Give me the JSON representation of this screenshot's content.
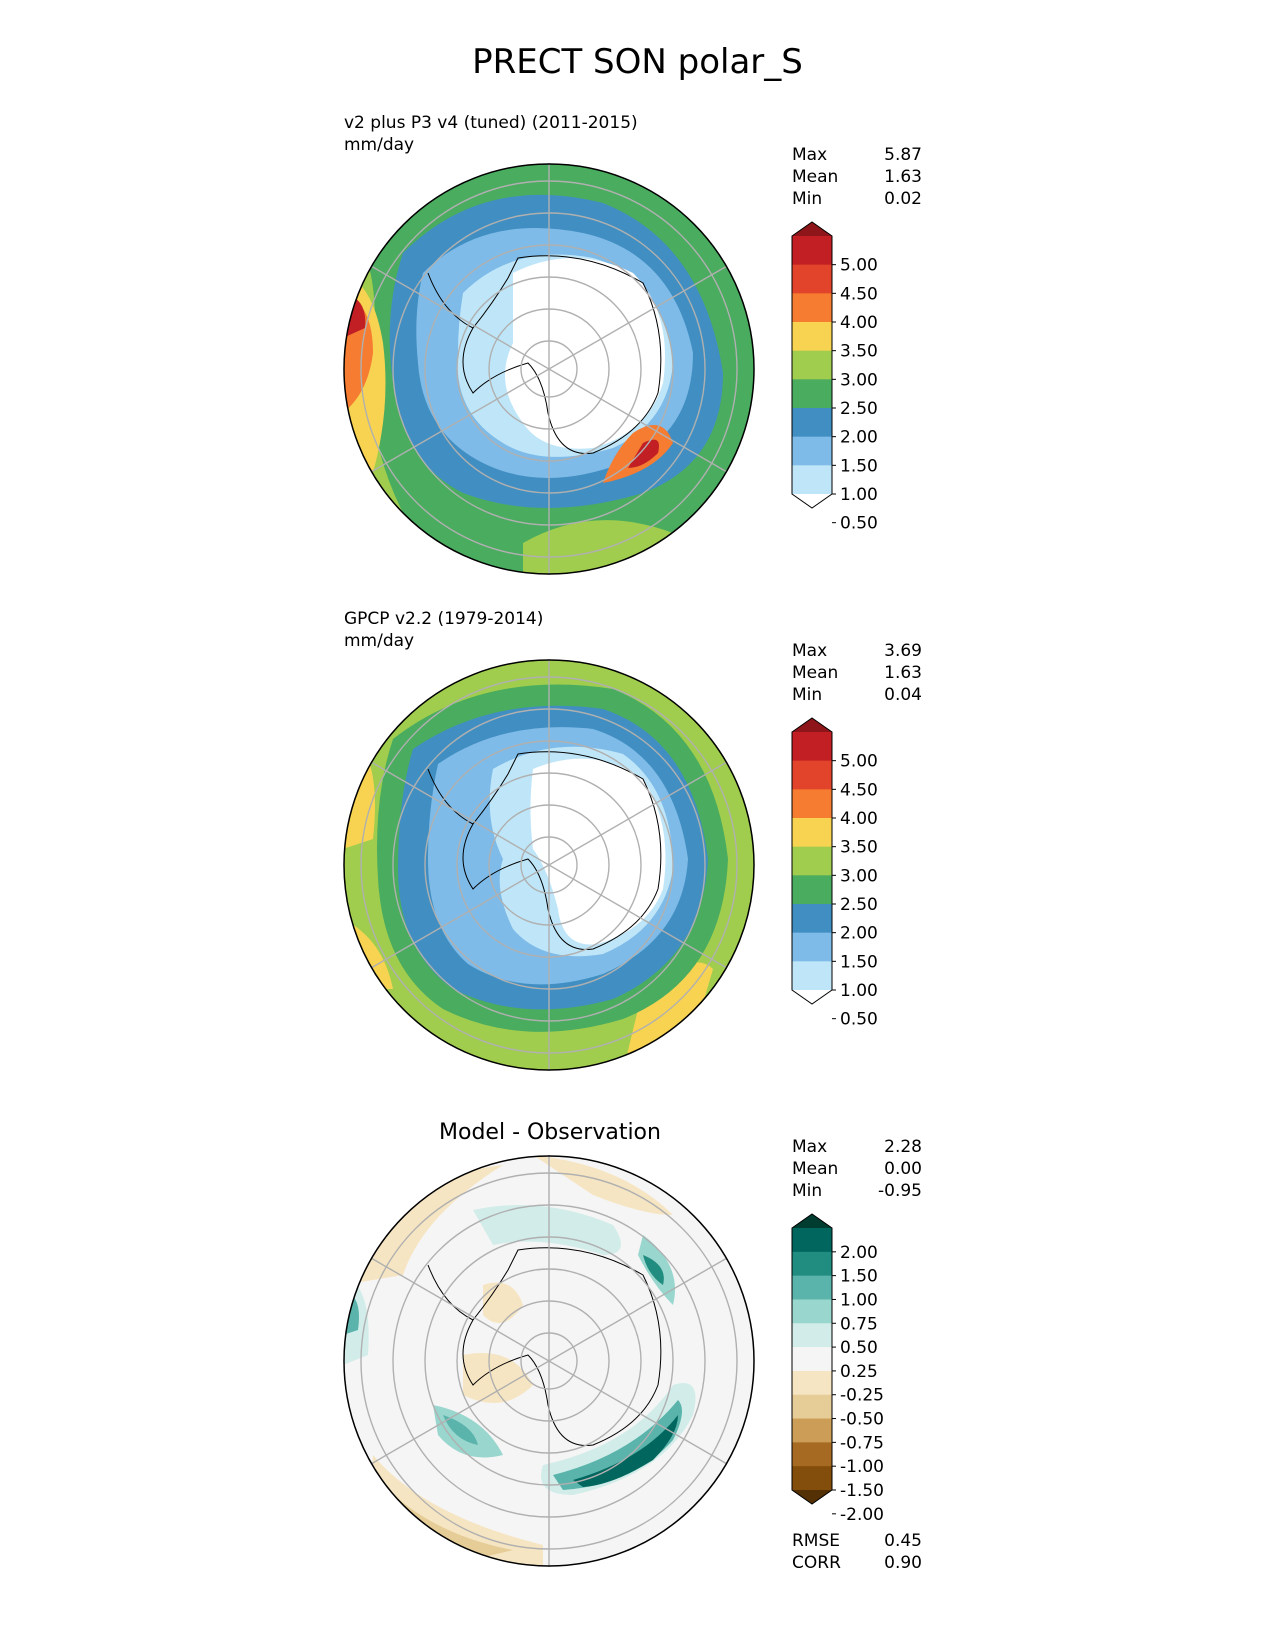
{
  "title": "PRECT SON polar_S",
  "panels": [
    {
      "id": "test",
      "title": "v2 plus P3 v4 (tuned) (2011-2015)",
      "units": "mm/day",
      "stats": [
        {
          "label": "Max",
          "value": "5.87"
        },
        {
          "label": "Mean",
          "value": "1.63"
        },
        {
          "label": "Min",
          "value": "0.02"
        }
      ]
    },
    {
      "id": "ref",
      "title": "GPCP v2.2 (1979-2014)",
      "units": "mm/day",
      "stats": [
        {
          "label": "Max",
          "value": "3.69"
        },
        {
          "label": "Mean",
          "value": "1.63"
        },
        {
          "label": "Min",
          "value": "0.04"
        }
      ]
    },
    {
      "id": "diff",
      "title": "Model - Observation",
      "stats": [
        {
          "label": "Max",
          "value": "2.28"
        },
        {
          "label": "Mean",
          "value": "0.00"
        },
        {
          "label": "Min",
          "value": "-0.95"
        }
      ],
      "metrics": [
        {
          "label": "RMSE",
          "value": "0.45"
        },
        {
          "label": "CORR",
          "value": "0.90"
        }
      ]
    }
  ],
  "colorbars": {
    "precip": {
      "labels": [
        "5.00",
        "4.50",
        "4.00",
        "3.50",
        "3.00",
        "2.50",
        "2.00",
        "1.50",
        "1.00",
        "0.50"
      ],
      "colors": [
        "#8e1519",
        "#c21f25",
        "#e2432b",
        "#f57c31",
        "#f8d351",
        "#a0cd4e",
        "#4aac5f",
        "#418fc2",
        "#7ebbe8",
        "#bfe6f8",
        "#ffffff"
      ]
    },
    "diff": {
      "labels": [
        "2.00",
        "1.50",
        "1.00",
        "0.75",
        "0.50",
        "0.25",
        "-0.25",
        "-0.50",
        "-0.75",
        "-1.00",
        "-1.50",
        "-2.00"
      ],
      "colors": [
        "#003c30",
        "#01665e",
        "#218c80",
        "#5ab4ac",
        "#98d6ce",
        "#d2ede9",
        "#f5f5f5",
        "#f6e5c2",
        "#e6cd97",
        "#cc9d56",
        "#a76a22",
        "#834d0b",
        "#543005"
      ]
    }
  }
}
